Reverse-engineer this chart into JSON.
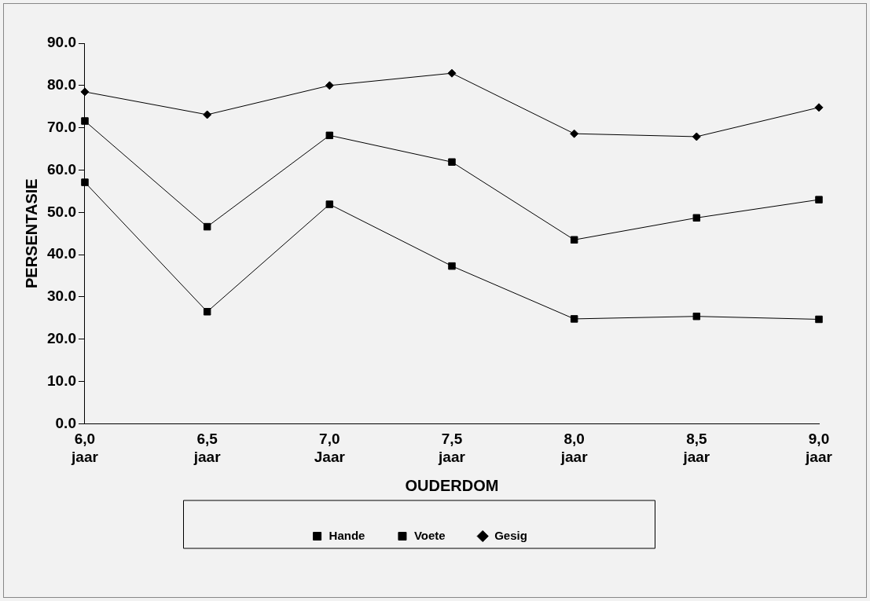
{
  "chart_data": {
    "type": "line",
    "categories": [
      "6,0\njaar",
      "6,5\njaar",
      "7,0\nJaar",
      "7,5\njaar",
      "8,0\njaar",
      "8,5\njaar",
      "9,0\njaar"
    ],
    "series": [
      {
        "name": "Hande",
        "color": "#000000",
        "marker": "square",
        "values": [
          71.6,
          46.6,
          68.2,
          61.9,
          43.5,
          48.7,
          53.0
        ]
      },
      {
        "name": "Voete",
        "color": "#000000",
        "marker": "square",
        "values": [
          57.1,
          26.5,
          51.9,
          37.3,
          24.8,
          25.4,
          24.7
        ]
      },
      {
        "name": "Gesig",
        "color": "#000000",
        "marker": "diamond",
        "values": [
          78.5,
          73.1,
          80.0,
          82.9,
          68.6,
          67.9,
          74.8
        ]
      }
    ],
    "xlabel": "OUDERDOM",
    "ylabel": "PERSENTASIE",
    "ylim": [
      0,
      90
    ],
    "yticks": [
      {
        "value": 0,
        "label": "0.0"
      },
      {
        "value": 10,
        "label": "10.0"
      },
      {
        "value": 20,
        "label": "20.0"
      },
      {
        "value": 30,
        "label": "30.0"
      },
      {
        "value": 40,
        "label": "40.0"
      },
      {
        "value": 50,
        "label": "50.0"
      },
      {
        "value": 60,
        "label": "60.0"
      },
      {
        "value": 70,
        "label": "70.0"
      },
      {
        "value": 80,
        "label": "80.0"
      },
      {
        "value": 90,
        "label": "90.0"
      }
    ],
    "grid": false,
    "legend": "bottom",
    "line_style": "solid"
  }
}
